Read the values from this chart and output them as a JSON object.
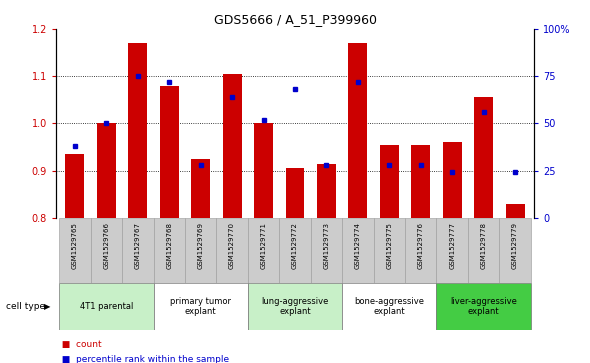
{
  "title": "GDS5666 / A_51_P399960",
  "samples": [
    "GSM1529765",
    "GSM1529766",
    "GSM1529767",
    "GSM1529768",
    "GSM1529769",
    "GSM1529770",
    "GSM1529771",
    "GSM1529772",
    "GSM1529773",
    "GSM1529774",
    "GSM1529775",
    "GSM1529776",
    "GSM1529777",
    "GSM1529778",
    "GSM1529779"
  ],
  "red_values": [
    0.935,
    1.0,
    1.17,
    1.08,
    0.925,
    1.105,
    1.0,
    0.905,
    0.915,
    1.17,
    0.955,
    0.955,
    0.96,
    1.055,
    0.83
  ],
  "blue_values": [
    38,
    50,
    75,
    72,
    28,
    64,
    52,
    68,
    28,
    72,
    28,
    28,
    24,
    56,
    24
  ],
  "cell_types": [
    {
      "label": "4T1 parental",
      "start": 0,
      "end": 3,
      "color": "#c8f0c8"
    },
    {
      "label": "primary tumor\nexplant",
      "start": 3,
      "end": 6,
      "color": "#ffffff"
    },
    {
      "label": "lung-aggressive\nexplant",
      "start": 6,
      "end": 9,
      "color": "#c8f0c8"
    },
    {
      "label": "bone-aggressive\nexplant",
      "start": 9,
      "end": 12,
      "color": "#ffffff"
    },
    {
      "label": "liver-aggressive\nexplant",
      "start": 12,
      "end": 15,
      "color": "#44cc44"
    }
  ],
  "ylim": [
    0.8,
    1.2
  ],
  "y2lim": [
    0,
    100
  ],
  "yticks": [
    0.8,
    0.9,
    1.0,
    1.1,
    1.2
  ],
  "y2ticks": [
    0,
    25,
    50,
    75,
    100
  ],
  "bar_color": "#cc0000",
  "dot_color": "#0000cc",
  "bar_width": 0.6,
  "title_fontsize": 9,
  "tick_fontsize": 7,
  "sample_fontsize": 5,
  "ct_fontsize": 6,
  "legend_fontsize": 6.5,
  "tick_label_color_left": "#cc0000",
  "tick_label_color_right": "#0000cc",
  "gray_box_color": "#cccccc",
  "gray_box_edge": "#999999"
}
